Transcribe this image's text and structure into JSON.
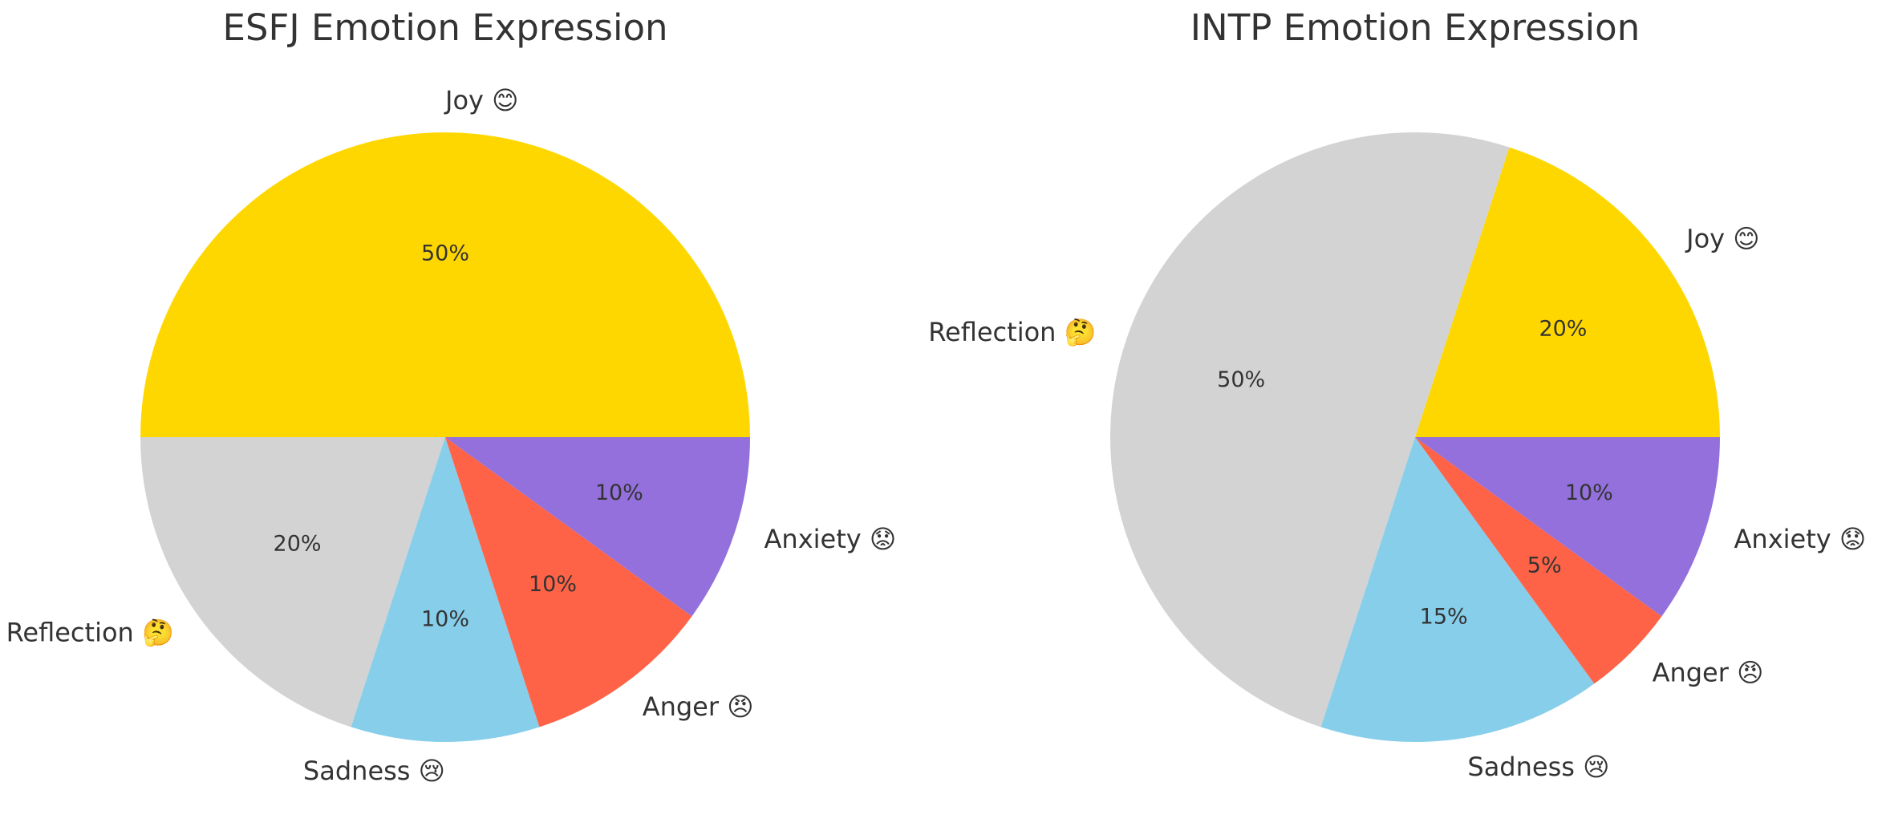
{
  "chart_data": [
    {
      "type": "pie",
      "title": "ESFJ Emotion Expression",
      "categories": [
        "Joy 😊",
        "Reflection 🤔",
        "Sadness 😢",
        "Anger 😠",
        "Anxiety 😟"
      ],
      "values": [
        50,
        20,
        10,
        10,
        10
      ],
      "value_labels": [
        "50%",
        "20%",
        "10%",
        "10%",
        "10%"
      ],
      "colors": [
        "#FFD700",
        "#D3D3D3",
        "#87CEEB",
        "#FF6347",
        "#9370DB"
      ]
    },
    {
      "type": "pie",
      "title": "INTP Emotion Expression",
      "categories": [
        "Joy 😊",
        "Reflection 🤔",
        "Sadness 😢",
        "Anger 😠",
        "Anxiety 😟"
      ],
      "values": [
        20,
        50,
        15,
        5,
        10
      ],
      "value_labels": [
        "20%",
        "50%",
        "15%",
        "5%",
        "10%"
      ],
      "colors": [
        "#FFD700",
        "#D3D3D3",
        "#87CEEB",
        "#FF6347",
        "#9370DB"
      ]
    }
  ]
}
